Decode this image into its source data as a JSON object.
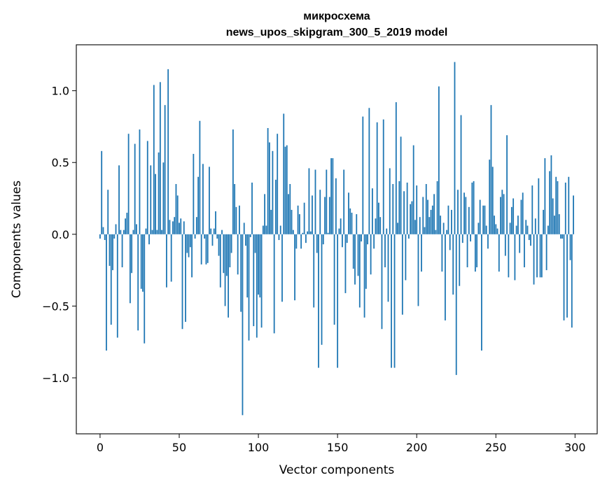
{
  "chart_data": {
    "type": "bar",
    "title_line1": "микросхема",
    "title_line2": "news_upos_skipgram_300_5_2019 model",
    "xlabel": "Vector components",
    "ylabel": "Components values",
    "xlim": [
      -15,
      314
    ],
    "ylim": [
      -1.39,
      1.32
    ],
    "xticks": [
      0,
      50,
      100,
      150,
      200,
      250,
      300
    ],
    "xtick_labels": [
      "0",
      "50",
      "100",
      "150",
      "200",
      "250",
      "300"
    ],
    "yticks": [
      -1.0,
      -0.5,
      0.0,
      0.5,
      1.0
    ],
    "ytick_labels": [
      "−1.0",
      "−0.5",
      "0.0",
      "0.5",
      "1.0"
    ],
    "bar_color": "#1f77b4",
    "grid": false,
    "values": [
      -0.03,
      0.58,
      0.05,
      -0.04,
      -0.81,
      0.31,
      -0.22,
      -0.63,
      -0.25,
      -0.03,
      0.07,
      -0.72,
      0.48,
      0.03,
      -0.23,
      0.03,
      0.11,
      0.15,
      0.7,
      -0.48,
      -0.27,
      0.03,
      0.63,
      0.07,
      -0.67,
      0.73,
      -0.38,
      -0.4,
      -0.76,
      0.04,
      0.65,
      -0.07,
      0.48,
      0.03,
      1.04,
      0.42,
      0.03,
      0.57,
      1.06,
      0.03,
      0.5,
      0.9,
      -0.37,
      1.15,
      0.1,
      -0.33,
      0.09,
      0.12,
      0.35,
      0.27,
      0.08,
      0.11,
      -0.66,
      0.09,
      -0.61,
      -0.13,
      -0.16,
      -0.09,
      -0.3,
      0.56,
      -0.03,
      0.12,
      0.4,
      0.79,
      -0.21,
      0.49,
      -0.03,
      -0.21,
      -0.2,
      0.47,
      0.04,
      -0.08,
      0.04,
      0.16,
      -0.03,
      -0.15,
      -0.37,
      0.03,
      -0.27,
      -0.5,
      -0.29,
      -0.58,
      -0.23,
      -0.13,
      0.73,
      0.35,
      0.19,
      -0.28,
      0.2,
      -0.54,
      -1.26,
      0.08,
      -0.08,
      -0.44,
      -0.74,
      -0.02,
      0.36,
      -0.64,
      -0.13,
      -0.72,
      -0.42,
      -0.44,
      -0.65,
      0.06,
      0.28,
      0.06,
      0.74,
      0.64,
      0.17,
      0.58,
      -0.69,
      0.38,
      0.7,
      -0.04,
      0.06,
      -0.47,
      0.84,
      0.61,
      0.62,
      0.28,
      0.35,
      0.17,
      0.03,
      -0.46,
      -0.1,
      0.2,
      0.14,
      -0.1,
      0.01,
      0.22,
      -0.06,
      0.02,
      0.46,
      0.02,
      0.27,
      -0.51,
      0.45,
      -0.13,
      -0.93,
      0.31,
      -0.77,
      -0.07,
      0.26,
      0.45,
      0.01,
      0.26,
      0.53,
      0.53,
      -0.63,
      0.39,
      -0.93,
      0.04,
      0.11,
      -0.09,
      0.45,
      -0.41,
      -0.06,
      0.29,
      0.18,
      0.15,
      -0.24,
      -0.35,
      0.14,
      -0.29,
      -0.51,
      -0.05,
      0.82,
      -0.58,
      -0.38,
      -0.07,
      0.88,
      -0.28,
      0.32,
      -0.1,
      0.11,
      0.78,
      0.22,
      0.12,
      -0.66,
      0.8,
      -0.23,
      0.04,
      -0.47,
      0.46,
      -0.93,
      0.35,
      -0.93,
      0.92,
      0.08,
      0.37,
      0.68,
      -0.56,
      0.3,
      -0.32,
      0.36,
      -0.03,
      0.21,
      0.23,
      0.62,
      0.1,
      0.34,
      -0.5,
      0.12,
      -0.26,
      0.26,
      0.05,
      0.35,
      0.24,
      0.12,
      0.17,
      0.2,
      0.28,
      0.03,
      0.37,
      1.03,
      0.13,
      -0.26,
      0.08,
      -0.6,
      0.03,
      0.2,
      -0.11,
      0.17,
      -0.42,
      1.2,
      -0.98,
      0.31,
      -0.36,
      0.83,
      -0.06,
      0.29,
      0.26,
      -0.23,
      0.19,
      -0.05,
      0.36,
      0.37,
      -0.26,
      -0.23,
      0.08,
      0.24,
      -0.81,
      0.2,
      0.2,
      0.06,
      -0.1,
      0.52,
      0.9,
      0.47,
      0.13,
      0.07,
      0.04,
      -0.26,
      0.26,
      0.31,
      0.28,
      -0.15,
      0.69,
      -0.3,
      0.08,
      0.19,
      0.25,
      -0.32,
      0.06,
      0.13,
      -0.13,
      0.24,
      0.29,
      -0.23,
      0.1,
      0.06,
      -0.04,
      -0.08,
      0.34,
      -0.35,
      0.11,
      -0.3,
      0.39,
      -0.3,
      -0.3,
      0.17,
      0.53,
      -0.25,
      0.06,
      0.44,
      0.55,
      0.25,
      0.13,
      0.4,
      0.37,
      0.14,
      -0.03,
      -0.03,
      -0.6,
      0.36,
      -0.58,
      0.4,
      -0.18,
      -0.65,
      0.27
    ]
  }
}
